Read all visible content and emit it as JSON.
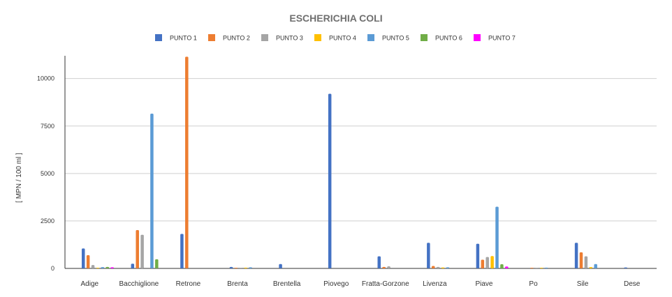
{
  "chart_data": {
    "type": "bar",
    "title": "ESCHERICHIA COLI",
    "ylabel": "[ MPN / 100 ml ]",
    "xlabel": "",
    "ylim": [
      0,
      11200
    ],
    "yticks": [
      0,
      2500,
      5000,
      7500,
      10000
    ],
    "ytick_labels": [
      "0",
      "2500",
      "5000",
      "7500",
      "10000"
    ],
    "grid": true,
    "legend_position": "top",
    "categories": [
      "Adige",
      "Bacchiglione",
      "Retrone",
      "Brenta",
      "Brentella",
      "Piovego",
      "Fratta-Gorzone",
      "Livenza",
      "Piave",
      "Po",
      "Sile",
      "Dese"
    ],
    "series": [
      {
        "name": "PUNTO 1",
        "color": "#4472c4",
        "values": [
          1050,
          250,
          1820,
          80,
          230,
          9200,
          640,
          1350,
          1300,
          0,
          1350,
          50
        ]
      },
      {
        "name": "PUNTO 2",
        "color": "#ed7d31",
        "values": [
          700,
          2020,
          11150,
          20,
          0,
          0,
          80,
          130,
          460,
          20,
          850,
          0
        ]
      },
      {
        "name": "PUNTO 3",
        "color": "#a5a5a5",
        "values": [
          180,
          1770,
          0,
          30,
          0,
          0,
          110,
          80,
          600,
          20,
          640,
          0
        ]
      },
      {
        "name": "PUNTO 4",
        "color": "#ffc000",
        "values": [
          30,
          0,
          0,
          40,
          0,
          0,
          0,
          50,
          650,
          10,
          70,
          0
        ]
      },
      {
        "name": "PUNTO 5",
        "color": "#5b9bd5",
        "values": [
          70,
          8150,
          0,
          60,
          0,
          0,
          0,
          60,
          3250,
          40,
          230,
          0
        ]
      },
      {
        "name": "PUNTO 6",
        "color": "#70ad47",
        "values": [
          80,
          480,
          0,
          0,
          0,
          0,
          0,
          0,
          220,
          0,
          0,
          0
        ]
      },
      {
        "name": "PUNTO 7",
        "color": "#ff00ff",
        "values": [
          60,
          0,
          0,
          0,
          0,
          0,
          0,
          0,
          100,
          0,
          0,
          0
        ]
      }
    ]
  }
}
